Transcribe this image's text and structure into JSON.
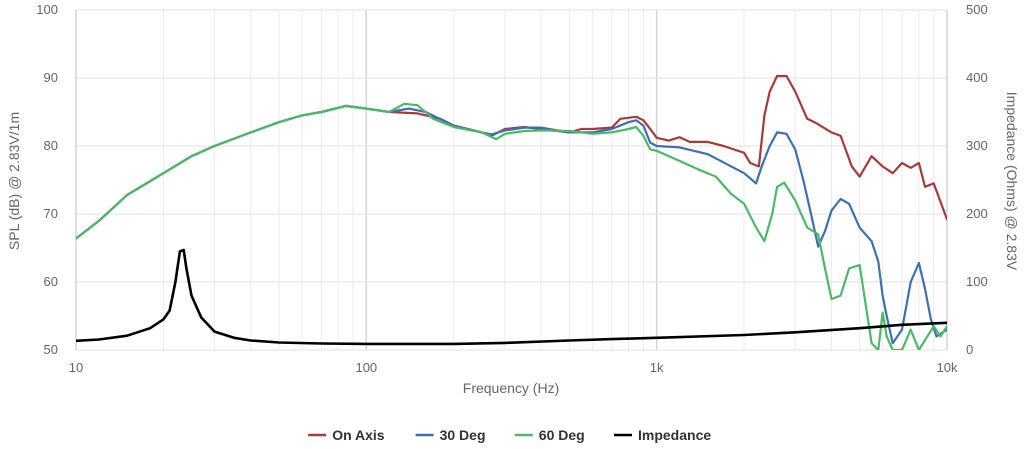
{
  "chart_data": {
    "type": "line",
    "xlabel": "Frequency (Hz)",
    "ylabel": "SPL (dB) @ 2.83V/1m",
    "y2label": "Impedance (Ohms) @ 2.83V",
    "xscale": "log",
    "xlim": [
      10,
      10000
    ],
    "ylim": [
      50,
      100
    ],
    "y2lim": [
      0,
      500
    ],
    "x_ticks": [
      {
        "value": 10,
        "label": "10"
      },
      {
        "value": 100,
        "label": "100"
      },
      {
        "value": 1000,
        "label": "1k"
      },
      {
        "value": 10000,
        "label": "10k"
      }
    ],
    "y_ticks": [
      "50",
      "60",
      "70",
      "80",
      "90",
      "100"
    ],
    "y2_ticks": [
      "0",
      "100",
      "200",
      "300",
      "400",
      "500"
    ],
    "grid": true,
    "legend_position": "bottom-center",
    "series": [
      {
        "name": "On Axis",
        "color": "#a83a3a",
        "axis": "left",
        "points": [
          [
            10,
            66.4
          ],
          [
            12,
            69
          ],
          [
            15,
            72.8
          ],
          [
            20,
            76
          ],
          [
            25,
            78.5
          ],
          [
            30,
            80
          ],
          [
            40,
            82
          ],
          [
            50,
            83.5
          ],
          [
            60,
            84.5
          ],
          [
            70,
            85
          ],
          [
            85,
            85.9
          ],
          [
            100,
            85.5
          ],
          [
            120,
            85
          ],
          [
            150,
            84.8
          ],
          [
            180,
            84
          ],
          [
            200,
            83
          ],
          [
            250,
            82
          ],
          [
            270,
            81.5
          ],
          [
            300,
            82.5
          ],
          [
            350,
            82.8
          ],
          [
            400,
            82.5
          ],
          [
            500,
            82
          ],
          [
            550,
            82.5
          ],
          [
            600,
            82.5
          ],
          [
            700,
            82.7
          ],
          [
            750,
            84
          ],
          [
            850,
            84.3
          ],
          [
            900,
            83.8
          ],
          [
            950,
            82.5
          ],
          [
            1000,
            81.2
          ],
          [
            1100,
            80.8
          ],
          [
            1200,
            81.3
          ],
          [
            1300,
            80.6
          ],
          [
            1500,
            80.6
          ],
          [
            1700,
            80
          ],
          [
            2000,
            79
          ],
          [
            2100,
            77.5
          ],
          [
            2250,
            77
          ],
          [
            2350,
            84.5
          ],
          [
            2450,
            88
          ],
          [
            2600,
            90.3
          ],
          [
            2800,
            90.3
          ],
          [
            3000,
            88
          ],
          [
            3300,
            84
          ],
          [
            3500,
            83.5
          ],
          [
            4000,
            82
          ],
          [
            4300,
            81.5
          ],
          [
            4700,
            77
          ],
          [
            5000,
            75.5
          ],
          [
            5500,
            78.5
          ],
          [
            6000,
            77
          ],
          [
            6500,
            76
          ],
          [
            7000,
            77.5
          ],
          [
            7500,
            76.8
          ],
          [
            8000,
            77.5
          ],
          [
            8400,
            74
          ],
          [
            9000,
            74.5
          ],
          [
            10000,
            69.2
          ]
        ]
      },
      {
        "name": "30 Deg",
        "color": "#3e6fb0",
        "axis": "left",
        "points": [
          [
            10,
            66.4
          ],
          [
            12,
            69
          ],
          [
            15,
            72.8
          ],
          [
            20,
            76
          ],
          [
            25,
            78.5
          ],
          [
            30,
            80
          ],
          [
            40,
            82
          ],
          [
            50,
            83.5
          ],
          [
            60,
            84.5
          ],
          [
            70,
            85
          ],
          [
            85,
            85.9
          ],
          [
            100,
            85.5
          ],
          [
            120,
            85
          ],
          [
            140,
            85.5
          ],
          [
            160,
            85
          ],
          [
            200,
            83
          ],
          [
            250,
            82
          ],
          [
            270,
            81.7
          ],
          [
            300,
            82.3
          ],
          [
            350,
            82.7
          ],
          [
            400,
            82.7
          ],
          [
            500,
            82
          ],
          [
            600,
            82
          ],
          [
            700,
            82.5
          ],
          [
            800,
            83.5
          ],
          [
            850,
            83.8
          ],
          [
            900,
            83
          ],
          [
            950,
            80.5
          ],
          [
            1000,
            80
          ],
          [
            1200,
            79.8
          ],
          [
            1500,
            78.8
          ],
          [
            2000,
            76
          ],
          [
            2200,
            74.5
          ],
          [
            2300,
            77
          ],
          [
            2450,
            80
          ],
          [
            2600,
            82
          ],
          [
            2800,
            81.8
          ],
          [
            3000,
            79.5
          ],
          [
            3200,
            75
          ],
          [
            3400,
            70
          ],
          [
            3600,
            65.2
          ],
          [
            3800,
            67.5
          ],
          [
            4000,
            70.5
          ],
          [
            4300,
            72.2
          ],
          [
            4600,
            71.5
          ],
          [
            5000,
            68
          ],
          [
            5500,
            66
          ],
          [
            5800,
            63
          ],
          [
            6000,
            58
          ],
          [
            6200,
            55
          ],
          [
            6500,
            51
          ],
          [
            7000,
            53
          ],
          [
            7500,
            60
          ],
          [
            8000,
            62.8
          ],
          [
            8400,
            59
          ],
          [
            8800,
            54.5
          ],
          [
            9200,
            52
          ],
          [
            10000,
            53
          ]
        ]
      },
      {
        "name": "60 Deg",
        "color": "#4cb868",
        "axis": "left",
        "points": [
          [
            10,
            66.4
          ],
          [
            12,
            69
          ],
          [
            15,
            72.8
          ],
          [
            20,
            76
          ],
          [
            25,
            78.5
          ],
          [
            30,
            80
          ],
          [
            40,
            82
          ],
          [
            50,
            83.5
          ],
          [
            60,
            84.5
          ],
          [
            70,
            85
          ],
          [
            85,
            85.9
          ],
          [
            100,
            85.5
          ],
          [
            120,
            85
          ],
          [
            135,
            86.2
          ],
          [
            150,
            86
          ],
          [
            170,
            84
          ],
          [
            200,
            82.8
          ],
          [
            250,
            82
          ],
          [
            280,
            81
          ],
          [
            300,
            81.8
          ],
          [
            350,
            82.2
          ],
          [
            400,
            82.3
          ],
          [
            500,
            82.2
          ],
          [
            600,
            81.8
          ],
          [
            700,
            82
          ],
          [
            800,
            82.5
          ],
          [
            850,
            82.8
          ],
          [
            900,
            81.5
          ],
          [
            950,
            79.5
          ],
          [
            1000,
            79.3
          ],
          [
            1200,
            77.8
          ],
          [
            1400,
            76.5
          ],
          [
            1600,
            75.5
          ],
          [
            1800,
            73
          ],
          [
            2000,
            71.5
          ],
          [
            2200,
            68
          ],
          [
            2350,
            66
          ],
          [
            2500,
            70
          ],
          [
            2600,
            74
          ],
          [
            2750,
            74.6
          ],
          [
            3000,
            72
          ],
          [
            3300,
            68
          ],
          [
            3600,
            67
          ],
          [
            3800,
            62
          ],
          [
            4000,
            57.5
          ],
          [
            4300,
            58
          ],
          [
            4600,
            62
          ],
          [
            5000,
            62.5
          ],
          [
            5500,
            51
          ],
          [
            5800,
            50
          ],
          [
            6000,
            55.5
          ],
          [
            6200,
            52
          ],
          [
            6500,
            50
          ],
          [
            7000,
            50
          ],
          [
            7500,
            53
          ],
          [
            8000,
            50
          ],
          [
            9000,
            53.5
          ],
          [
            9500,
            52
          ],
          [
            10000,
            53.5
          ]
        ]
      },
      {
        "name": "Impedance",
        "color": "#000000",
        "axis": "right",
        "points": [
          [
            10,
            13.5
          ],
          [
            12,
            15.5
          ],
          [
            15,
            21
          ],
          [
            18,
            32
          ],
          [
            20,
            45
          ],
          [
            21,
            58
          ],
          [
            22,
            100
          ],
          [
            22.8,
            145
          ],
          [
            23.5,
            147
          ],
          [
            24,
            120
          ],
          [
            25,
            80
          ],
          [
            27,
            48
          ],
          [
            30,
            27
          ],
          [
            35,
            18
          ],
          [
            40,
            14
          ],
          [
            50,
            11
          ],
          [
            70,
            9.5
          ],
          [
            100,
            9
          ],
          [
            200,
            9
          ],
          [
            300,
            10.5
          ],
          [
            500,
            14
          ],
          [
            700,
            16
          ],
          [
            1000,
            18
          ],
          [
            2000,
            22
          ],
          [
            3000,
            26
          ],
          [
            5000,
            32
          ],
          [
            7000,
            37
          ],
          [
            10000,
            40
          ]
        ]
      }
    ]
  }
}
